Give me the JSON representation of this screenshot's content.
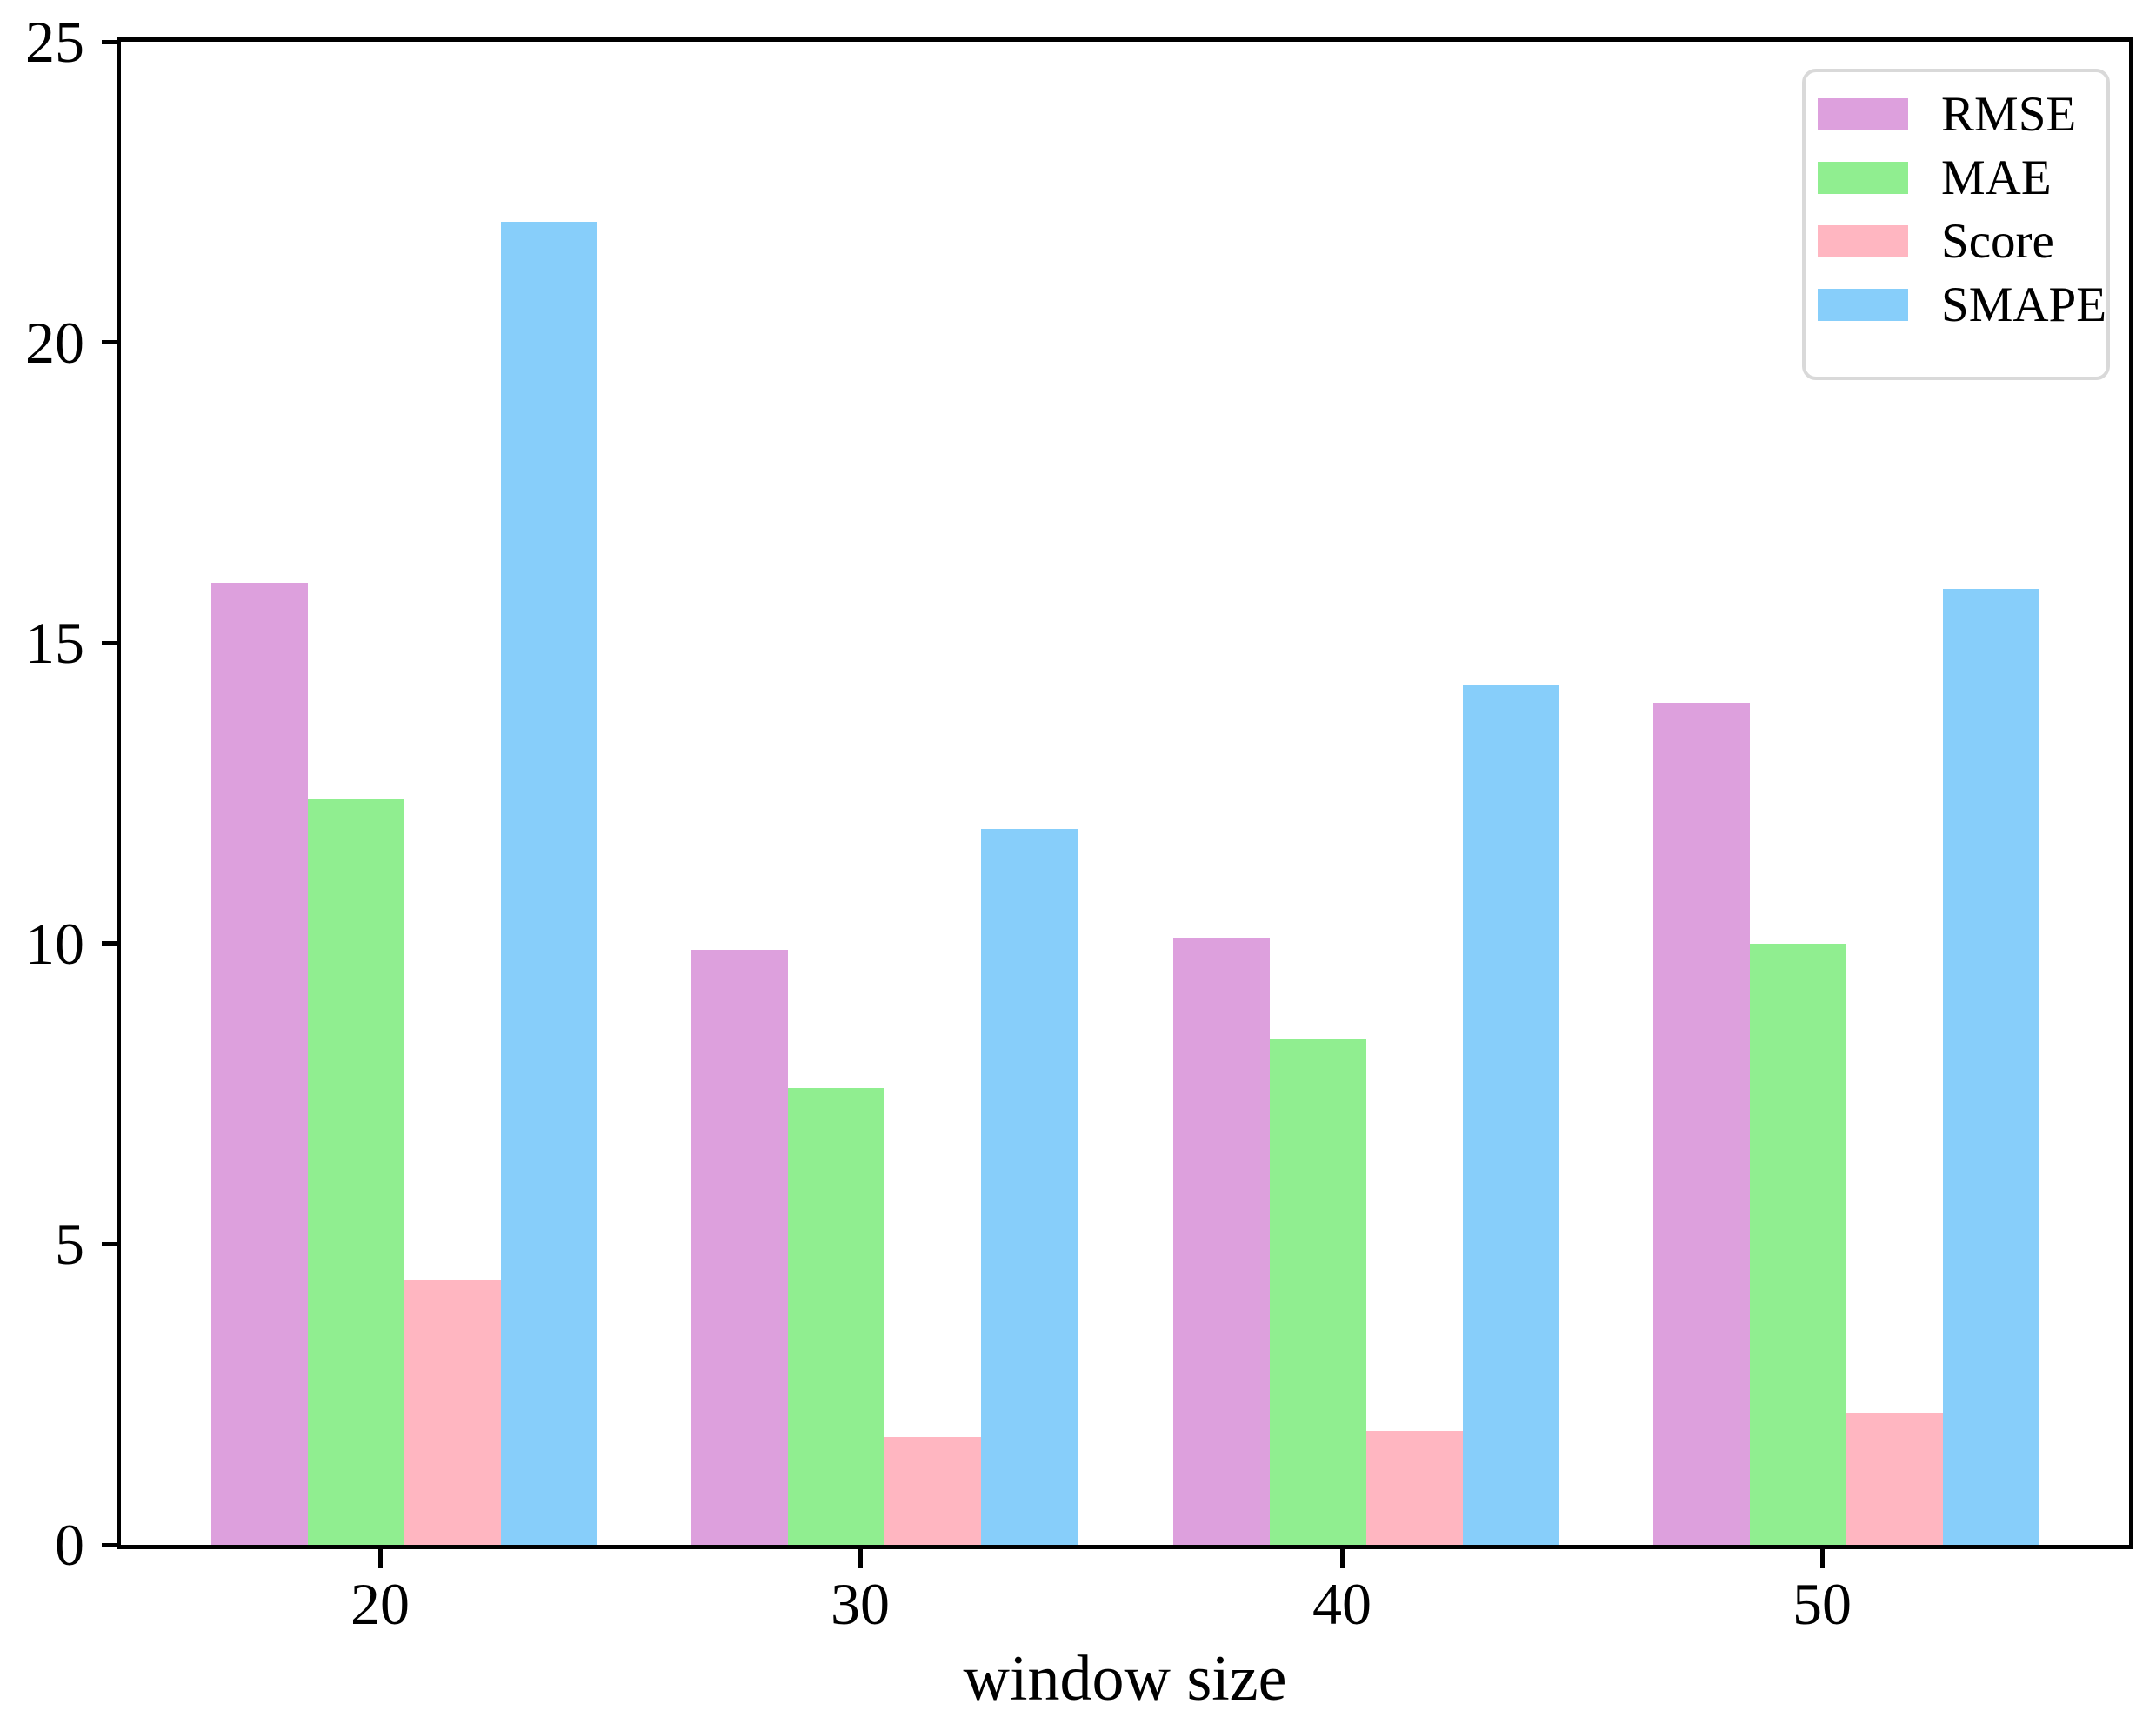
{
  "chart_data": {
    "type": "bar",
    "title": "",
    "xlabel": "window size",
    "ylabel": "",
    "categories": [
      "20",
      "30",
      "40",
      "50"
    ],
    "series": [
      {
        "name": "RMSE",
        "color": "#DDA0DD",
        "values": [
          16.0,
          9.9,
          10.1,
          14.0
        ]
      },
      {
        "name": "MAE",
        "color": "#90EE90",
        "values": [
          12.4,
          7.6,
          8.4,
          10.0
        ]
      },
      {
        "name": "Score",
        "color": "#FFB6C1",
        "values": [
          4.4,
          1.8,
          1.9,
          2.2
        ]
      },
      {
        "name": "SMAPE",
        "color": "#87CEFA",
        "values": [
          22.0,
          11.9,
          14.3,
          15.9
        ]
      }
    ],
    "ylim": [
      0,
      25
    ],
    "yticks": [
      0,
      5,
      10,
      15,
      20,
      25
    ],
    "grid": false,
    "legend_position": "upper right",
    "axis_color": "#000000",
    "background_color": "#ffffff"
  }
}
